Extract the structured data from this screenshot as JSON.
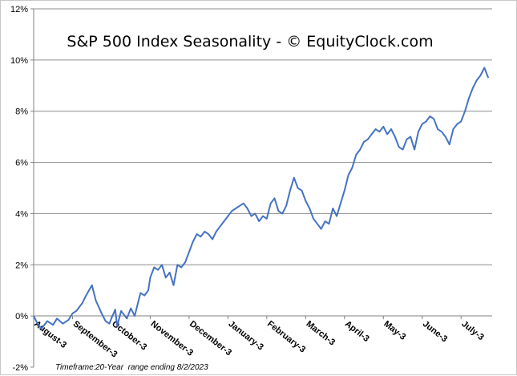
{
  "chart_data": {
    "type": "line",
    "title": "S&P 500 Index Seasonality - © EquityClock.com",
    "footnote_label": "Timeframe:",
    "footnote_value": "20-Year  range ending 8/2/2023",
    "xlabel": "",
    "ylabel": "",
    "ylim": [
      -2,
      12
    ],
    "y_ticks": [
      -2,
      0,
      2,
      4,
      6,
      8,
      10,
      12
    ],
    "y_tick_labels": [
      "-2%",
      "0%",
      "2%",
      "4%",
      "6%",
      "8%",
      "10%",
      "12%"
    ],
    "categories": [
      "August-3",
      "September-3",
      "October-3",
      "November-3",
      "December-3",
      "January-3",
      "February-3",
      "March-3",
      "April-3",
      "May-3",
      "June-3",
      "July-3"
    ],
    "grid": true,
    "line_color": "#4472c4",
    "series": [
      {
        "name": "S&P 500 Index Seasonality",
        "x": [
          0,
          0.1,
          0.2,
          0.35,
          0.5,
          0.6,
          0.75,
          0.9,
          1.0,
          1.1,
          1.25,
          1.35,
          1.5,
          1.6,
          1.75,
          1.85,
          1.95,
          2.0,
          2.1,
          2.15,
          2.25,
          2.4,
          2.5,
          2.6,
          2.75,
          2.85,
          2.95,
          3.0,
          3.1,
          3.2,
          3.3,
          3.4,
          3.5,
          3.6,
          3.7,
          3.8,
          3.9,
          4.0,
          4.1,
          4.2,
          4.3,
          4.4,
          4.5,
          4.6,
          4.7,
          4.8,
          4.9,
          5.0,
          5.1,
          5.2,
          5.3,
          5.4,
          5.5,
          5.6,
          5.7,
          5.8,
          5.9,
          6.0,
          6.1,
          6.2,
          6.3,
          6.4,
          6.5,
          6.6,
          6.7,
          6.8,
          6.9,
          7.0,
          7.1,
          7.2,
          7.3,
          7.4,
          7.5,
          7.6,
          7.7,
          7.8,
          7.9,
          8.0,
          8.1,
          8.2,
          8.3,
          8.4,
          8.5,
          8.6,
          8.7,
          8.8,
          8.9,
          9.0,
          9.1,
          9.2,
          9.3,
          9.4,
          9.5,
          9.6,
          9.7,
          9.8,
          9.9,
          10.0,
          10.1,
          10.2,
          10.3,
          10.4,
          10.5,
          10.6,
          10.7,
          10.8,
          10.9,
          11.0,
          11.1,
          11.2,
          11.3,
          11.4,
          11.5,
          11.6,
          11.7
        ],
        "y": [
          0.0,
          -0.3,
          -0.5,
          -0.2,
          -0.35,
          -0.1,
          -0.3,
          -0.15,
          0.1,
          0.2,
          0.5,
          0.8,
          1.2,
          0.6,
          0.1,
          -0.2,
          -0.3,
          -0.1,
          0.25,
          -0.4,
          0.2,
          -0.1,
          0.3,
          0.0,
          0.9,
          0.8,
          1.0,
          1.5,
          1.9,
          1.8,
          2.0,
          1.5,
          1.7,
          1.2,
          2.0,
          1.9,
          2.1,
          2.5,
          2.9,
          3.2,
          3.1,
          3.3,
          3.2,
          3.0,
          3.3,
          3.5,
          3.7,
          3.9,
          4.1,
          4.2,
          4.3,
          4.4,
          4.2,
          3.9,
          4.0,
          3.7,
          3.9,
          3.8,
          4.4,
          4.6,
          4.1,
          4.0,
          4.3,
          4.9,
          5.4,
          5.0,
          4.9,
          4.5,
          4.2,
          3.8,
          3.6,
          3.4,
          3.7,
          3.6,
          4.2,
          3.9,
          4.4,
          4.9,
          5.5,
          5.8,
          6.3,
          6.5,
          6.8,
          6.9,
          7.1,
          7.3,
          7.2,
          7.4,
          7.1,
          7.3,
          7.0,
          6.6,
          6.5,
          6.9,
          7.0,
          6.5,
          7.2,
          7.5,
          7.6,
          7.8,
          7.7,
          7.3,
          7.2,
          7.0,
          6.7,
          7.3,
          7.5,
          7.6,
          8.0,
          8.5,
          8.9,
          9.2,
          9.4,
          9.7,
          9.3
        ]
      }
    ]
  }
}
